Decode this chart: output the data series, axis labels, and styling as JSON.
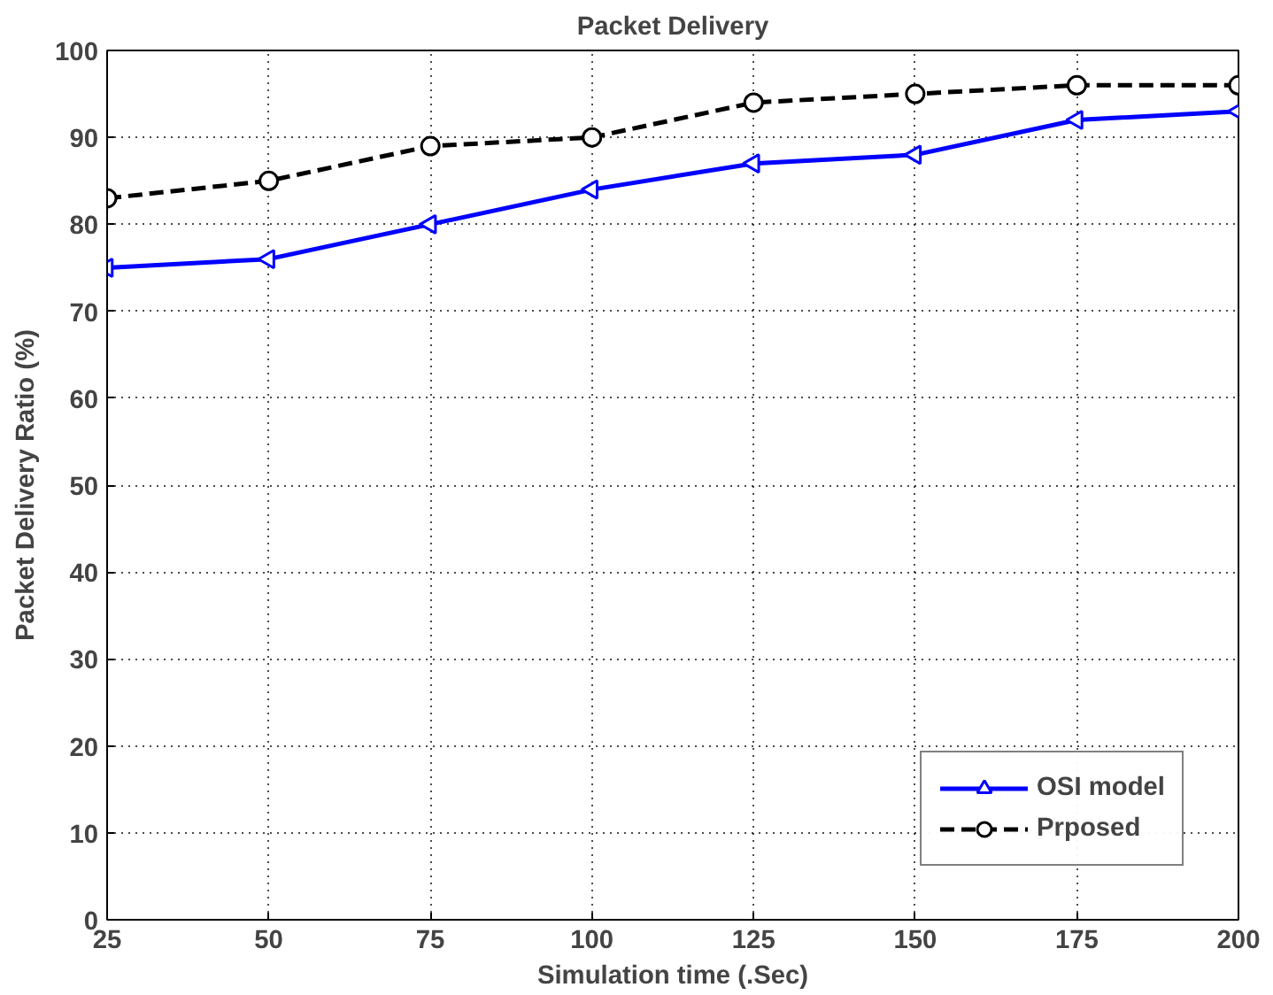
{
  "chart_data": {
    "type": "line",
    "title": "Packet Delivery",
    "xlabel": "Simulation time (.Sec)",
    "ylabel": "Packet Delivery Ratio (%)",
    "x": [
      25,
      50,
      75,
      100,
      125,
      150,
      175,
      200
    ],
    "series": [
      {
        "name": "OSI model",
        "color": "#0000ff",
        "values": [
          75,
          76,
          80,
          84,
          87,
          88,
          92,
          93
        ],
        "marker": "triangle",
        "line_style": "solid"
      },
      {
        "name": "Prposed",
        "color": "#000000",
        "values": [
          83,
          85,
          89,
          90,
          94,
          95,
          96,
          96
        ],
        "marker": "circle",
        "line_style": "dashed"
      }
    ],
    "xlim": [
      25,
      200
    ],
    "ylim": [
      0,
      100
    ],
    "xticks": [
      25,
      50,
      75,
      100,
      125,
      150,
      175,
      200
    ],
    "yticks": [
      0,
      10,
      20,
      30,
      40,
      50,
      60,
      70,
      80,
      90,
      100
    ],
    "grid": true,
    "legend": "bottom right"
  }
}
